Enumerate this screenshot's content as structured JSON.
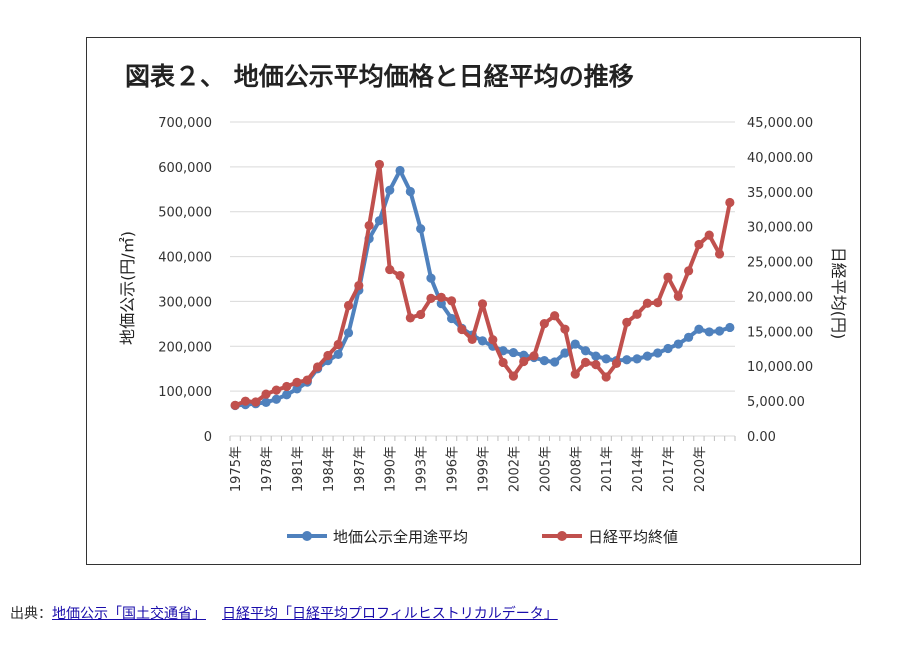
{
  "chart_data": {
    "type": "line",
    "title": "図表２、 地価公示平均価格と日経平均の推移",
    "ylabel_left": "地価公示(円/㎡)",
    "ylabel_right": "日経平均(円)",
    "ylim_left": [
      0,
      700000
    ],
    "ylim_right": [
      0,
      45000
    ],
    "yticks_left": [
      "0",
      "100,000",
      "200,000",
      "300,000",
      "400,000",
      "500,000",
      "600,000",
      "700,000"
    ],
    "yticks_right": [
      "0.00",
      "5,000.00",
      "10,000.00",
      "15,000.00",
      "20,000.00",
      "25,000.00",
      "30,000.00",
      "35,000.00",
      "40,000.00",
      "45,000.00"
    ],
    "x": [
      "1975年",
      "1976年",
      "1977年",
      "1978年",
      "1979年",
      "1980年",
      "1981年",
      "1982年",
      "1983年",
      "1984年",
      "1985年",
      "1986年",
      "1987年",
      "1988年",
      "1989年",
      "1990年",
      "1991年",
      "1992年",
      "1993年",
      "1994年",
      "1995年",
      "1996年",
      "1997年",
      "1998年",
      "1999年",
      "2000年",
      "2001年",
      "2002年",
      "2003年",
      "2004年",
      "2005年",
      "2006年",
      "2007年",
      "2008年",
      "2009年",
      "2010年",
      "2011年",
      "2012年",
      "2013年",
      "2014年",
      "2015年",
      "2016年",
      "2017年",
      "2018年",
      "2019年",
      "2020年",
      "2021年",
      "2022年",
      "2023年"
    ],
    "xtick_labels": [
      "1975年",
      "1978年",
      "1981年",
      "1984年",
      "1987年",
      "1990年",
      "1993年",
      "1996年",
      "1999年",
      "2002年",
      "2005年",
      "2008年",
      "2011年",
      "2014年",
      "2017年",
      "2020年"
    ],
    "xtick_index": [
      0,
      3,
      6,
      9,
      12,
      15,
      18,
      21,
      24,
      27,
      30,
      33,
      36,
      39,
      42,
      45
    ],
    "legend_position": "bottom",
    "series": [
      {
        "name": "地価公示全用途平均",
        "axis": "left",
        "color": "#4f81bd",
        "values": [
          68000,
          70000,
          72000,
          75000,
          82000,
          92000,
          105000,
          120000,
          150000,
          168000,
          182000,
          230000,
          325000,
          440000,
          480000,
          548000,
          592000,
          545000,
          462000,
          352000,
          295000,
          262000,
          240000,
          225000,
          212000,
          200000,
          190000,
          186000,
          180000,
          175000,
          168000,
          165000,
          185000,
          205000,
          190000,
          178000,
          172000,
          168000,
          170000,
          172000,
          178000,
          185000,
          195000,
          205000,
          220000,
          238000,
          232000,
          234000,
          242000
        ]
      },
      {
        "name": "日経平均終値",
        "axis": "right",
        "color": "#c0504d",
        "values": [
          4400,
          4990,
          4870,
          6000,
          6570,
          7100,
          7680,
          8020,
          9890,
          11540,
          13110,
          18700,
          21560,
          30160,
          38920,
          23850,
          22980,
          16930,
          17420,
          19720,
          19870,
          19360,
          15260,
          13840,
          18930,
          13790,
          10540,
          8580,
          10680,
          11490,
          16110,
          17230,
          15310,
          8860,
          10550,
          10230,
          8460,
          10400,
          16290,
          17450,
          19030,
          19110,
          22760,
          20010,
          23660,
          27440,
          28790,
          26090,
          33460
        ]
      }
    ]
  },
  "source": {
    "prefix": "出典：",
    "link1": "地価公示「国土交通省」",
    "link2": "日経平均「日経平均プロフィルヒストリカルデータ」"
  }
}
